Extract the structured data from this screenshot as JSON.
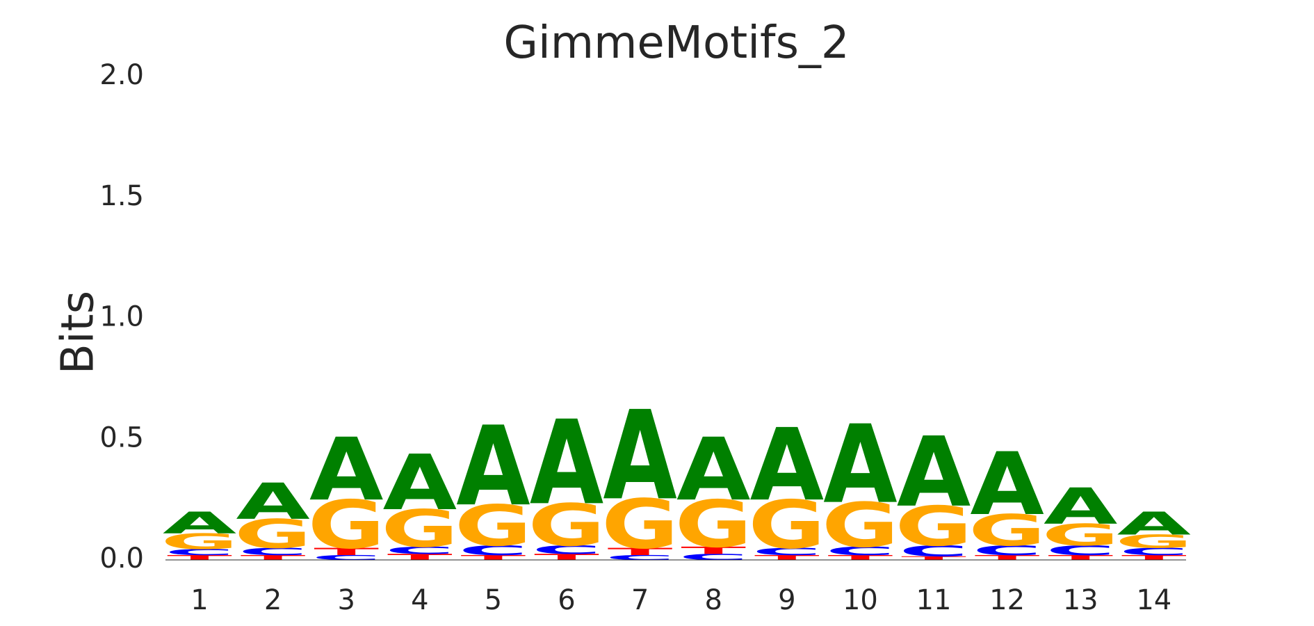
{
  "chart_data": {
    "type": "sequence_logo",
    "title": "GimmeMotifs_2",
    "xlabel": "",
    "ylabel": "Bits",
    "ylim": [
      0,
      2.0
    ],
    "yticks": [
      "0.0",
      "0.5",
      "1.0",
      "1.5",
      "2.0"
    ],
    "ytick_values": [
      0,
      0.5,
      1.0,
      1.5,
      2.0
    ],
    "grid": false,
    "colors": {
      "A": "#008000",
      "C": "#0000ff",
      "G": "#ffa500",
      "T": "#ff0000"
    },
    "positions": [
      {
        "pos": "1",
        "stack": [
          [
            "T",
            0.02
          ],
          [
            "C",
            0.025
          ],
          [
            "G",
            0.065
          ],
          [
            "A",
            0.09
          ]
        ]
      },
      {
        "pos": "2",
        "stack": [
          [
            "T",
            0.02
          ],
          [
            "C",
            0.03
          ],
          [
            "G",
            0.12
          ],
          [
            "A",
            0.15
          ]
        ]
      },
      {
        "pos": "3",
        "stack": [
          [
            "C",
            0.02
          ],
          [
            "T",
            0.03
          ],
          [
            "G",
            0.2
          ],
          [
            "A",
            0.26
          ]
        ]
      },
      {
        "pos": "4",
        "stack": [
          [
            "T",
            0.025
          ],
          [
            "C",
            0.03
          ],
          [
            "G",
            0.155
          ],
          [
            "A",
            0.23
          ]
        ]
      },
      {
        "pos": "5",
        "stack": [
          [
            "T",
            0.02
          ],
          [
            "C",
            0.04
          ],
          [
            "G",
            0.17
          ],
          [
            "A",
            0.33
          ]
        ]
      },
      {
        "pos": "6",
        "stack": [
          [
            "T",
            0.025
          ],
          [
            "C",
            0.035
          ],
          [
            "G",
            0.175
          ],
          [
            "A",
            0.35
          ]
        ]
      },
      {
        "pos": "7",
        "stack": [
          [
            "C",
            0.02
          ],
          [
            "T",
            0.03
          ],
          [
            "G",
            0.205
          ],
          [
            "A",
            0.37
          ]
        ]
      },
      {
        "pos": "8",
        "stack": [
          [
            "C",
            0.025
          ],
          [
            "T",
            0.03
          ],
          [
            "G",
            0.195
          ],
          [
            "A",
            0.26
          ]
        ]
      },
      {
        "pos": "9",
        "stack": [
          [
            "T",
            0.02
          ],
          [
            "C",
            0.03
          ],
          [
            "G",
            0.2
          ],
          [
            "A",
            0.3
          ]
        ]
      },
      {
        "pos": "10",
        "stack": [
          [
            "T",
            0.02
          ],
          [
            "C",
            0.035
          ],
          [
            "G",
            0.185
          ],
          [
            "A",
            0.325
          ]
        ]
      },
      {
        "pos": "11",
        "stack": [
          [
            "T",
            0.015
          ],
          [
            "C",
            0.045
          ],
          [
            "G",
            0.165
          ],
          [
            "A",
            0.29
          ]
        ]
      },
      {
        "pos": "12",
        "stack": [
          [
            "T",
            0.02
          ],
          [
            "C",
            0.04
          ],
          [
            "G",
            0.13
          ],
          [
            "A",
            0.26
          ]
        ]
      },
      {
        "pos": "13",
        "stack": [
          [
            "T",
            0.02
          ],
          [
            "C",
            0.04
          ],
          [
            "G",
            0.09
          ],
          [
            "A",
            0.15
          ]
        ]
      },
      {
        "pos": "14",
        "stack": [
          [
            "T",
            0.02
          ],
          [
            "C",
            0.03
          ],
          [
            "G",
            0.055
          ],
          [
            "A",
            0.095
          ]
        ]
      }
    ]
  }
}
